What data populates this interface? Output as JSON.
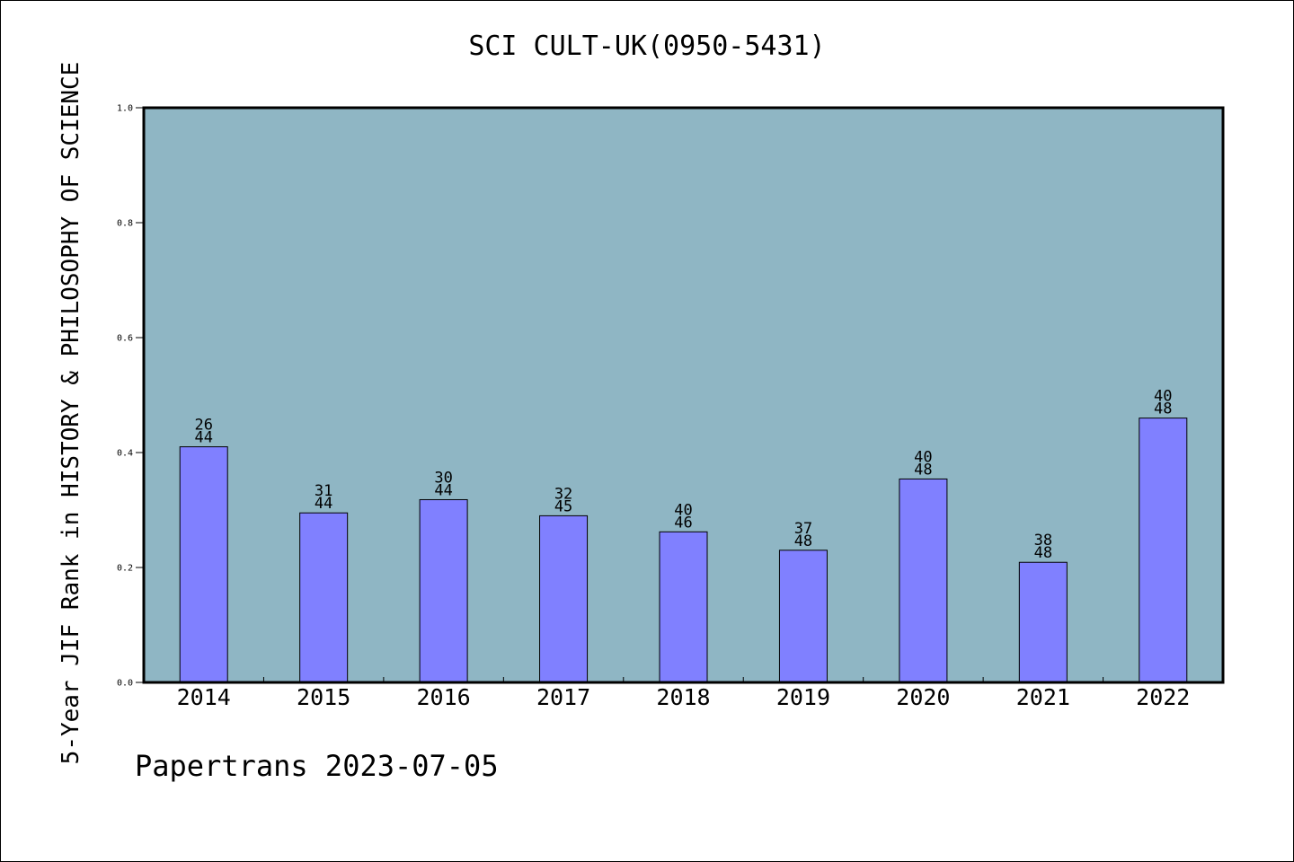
{
  "chart_data": {
    "type": "bar",
    "title": "SCI CULT-UK(0950-5431)",
    "xlabel": "",
    "ylabel": "5-Year JIF Rank in HISTORY & PHILOSOPHY OF SCIENCE",
    "categories": [
      "2014",
      "2015",
      "2016",
      "2017",
      "2018",
      "2019",
      "2020",
      "2021",
      "2022"
    ],
    "values": [
      0.41,
      0.295,
      0.318,
      0.29,
      0.262,
      0.23,
      0.354,
      0.209,
      0.46
    ],
    "bar_labels_top": [
      "26",
      "31",
      "30",
      "32",
      "40",
      "37",
      "40",
      "38",
      "40"
    ],
    "bar_labels_bottom": [
      "44",
      "44",
      "44",
      "45",
      "46",
      "48",
      "48",
      "48",
      "48"
    ],
    "ylim": [
      0,
      1.0
    ],
    "yticks": [
      "0.0",
      "0.2",
      "0.4",
      "0.6",
      "0.8",
      "1.0"
    ],
    "grid": false,
    "legend": "none",
    "colors": {
      "plot_background": "#8fb6c4",
      "bar_fill": "#8080ff",
      "bar_stroke": "#000000"
    }
  },
  "footer": {
    "credit": "Papertrans 2023-07-05"
  }
}
